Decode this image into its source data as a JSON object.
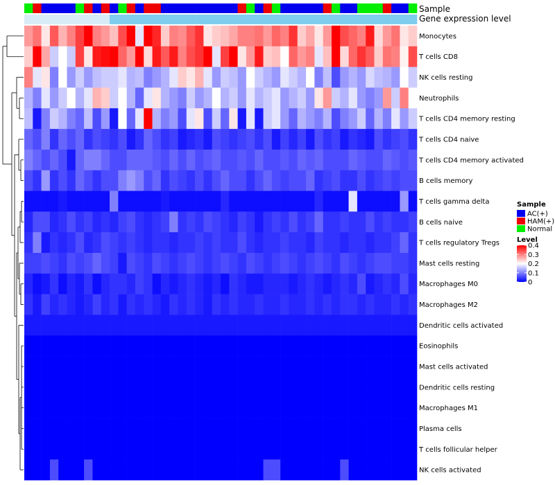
{
  "chart_data": {
    "type": "heatmap",
    "title": "",
    "annotation_tracks": [
      "Sample",
      "Gene expression level"
    ],
    "sample_groups": [
      "AC(+)",
      "HAM(+)",
      "Normal"
    ],
    "legend": {
      "sample": {
        "title": "Sample",
        "entries": [
          {
            "label": "AC(+)",
            "color": "#0000ee"
          },
          {
            "label": "HAM(+)",
            "color": "#ee0000"
          },
          {
            "label": "Normal",
            "color": "#00ee00"
          }
        ]
      },
      "level": {
        "title": "Level",
        "ticks": [
          "0.4",
          "0.3",
          "0.2",
          "0.1",
          "0"
        ],
        "low_color": "#0000ff",
        "mid_color": "#ffffff",
        "high_color": "#ff0000",
        "range": [
          0,
          0.4
        ]
      }
    },
    "sample_track": [
      "Normal",
      "HAM(+)",
      "AC(+)",
      "AC(+)",
      "AC(+)",
      "AC(+)",
      "Normal",
      "HAM(+)",
      "AC(+)",
      "HAM(+)",
      "AC(+)",
      "Normal",
      "HAM(+)",
      "AC(+)",
      "HAM(+)",
      "HAM(+)",
      "AC(+)",
      "AC(+)",
      "AC(+)",
      "AC(+)",
      "AC(+)",
      "AC(+)",
      "AC(+)",
      "AC(+)",
      "AC(+)",
      "HAM(+)",
      "Normal",
      "AC(+)",
      "HAM(+)",
      "Normal",
      "AC(+)",
      "AC(+)",
      "AC(+)",
      "AC(+)",
      "AC(+)",
      "HAM(+)",
      "Normal",
      "AC(+)",
      "AC(+)",
      "Normal",
      "Normal",
      "Normal",
      "HAM(+)",
      "AC(+)",
      "AC(+)",
      "Normal"
    ],
    "gene_expression_track": [
      0.05,
      0.05,
      0.05,
      0.05,
      0.05,
      0.05,
      0.05,
      0.05,
      0.05,
      0.05,
      0.1,
      0.1,
      0.1,
      0.1,
      0.1,
      0.1,
      0.1,
      0.1,
      0.1,
      0.1,
      0.1,
      0.1,
      0.1,
      0.1,
      0.1,
      0.1,
      0.1,
      0.1,
      0.1,
      0.1,
      0.1,
      0.1,
      0.1,
      0.1,
      0.1,
      0.1,
      0.1,
      0.1,
      0.1,
      0.1,
      0.1,
      0.1,
      0.1,
      0.1,
      0.1,
      0.1
    ],
    "rows": [
      {
        "label": "Monocytes",
        "values": [
          0.28,
          0.31,
          0.22,
          0.33,
          0.26,
          0.3,
          0.35,
          0.4,
          0.3,
          0.28,
          0.25,
          0.34,
          0.4,
          0.18,
          0.41,
          0.37,
          0.24,
          0.3,
          0.29,
          0.33,
          0.36,
          0.22,
          0.24,
          0.25,
          0.27,
          0.3,
          0.3,
          0.31,
          0.28,
          0.32,
          0.3,
          0.36,
          0.24,
          0.27,
          0.22,
          0.28,
          0.42,
          0.34,
          0.32,
          0.3,
          0.38,
          0.23,
          0.28,
          0.31,
          0.22,
          0.24
        ]
      },
      {
        "label": "T cells CD8",
        "values": [
          0.24,
          0.4,
          0.27,
          0.16,
          0.2,
          0.16,
          0.35,
          0.22,
          0.38,
          0.39,
          0.4,
          0.32,
          0.28,
          0.4,
          0.23,
          0.38,
          0.33,
          0.38,
          0.3,
          0.34,
          0.36,
          0.4,
          0.18,
          0.35,
          0.4,
          0.22,
          0.28,
          0.38,
          0.24,
          0.25,
          0.2,
          0.32,
          0.28,
          0.3,
          0.18,
          0.25,
          0.4,
          0.23,
          0.32,
          0.36,
          0.33,
          0.24,
          0.31,
          0.3,
          0.21,
          0.34
        ]
      },
      {
        "label": "NK cells resting",
        "values": [
          0.3,
          0.18,
          0.22,
          0.1,
          0.2,
          0.12,
          0.16,
          0.12,
          0.15,
          0.16,
          0.16,
          0.18,
          0.14,
          0.15,
          0.1,
          0.12,
          0.14,
          0.18,
          0.24,
          0.22,
          0.26,
          0.18,
          0.12,
          0.16,
          0.15,
          0.12,
          0.2,
          0.16,
          0.14,
          0.12,
          0.18,
          0.16,
          0.14,
          0.2,
          0.1,
          0.15,
          0.06,
          0.12,
          0.14,
          0.12,
          0.17,
          0.15,
          0.14,
          0.12,
          0.2,
          0.16
        ]
      },
      {
        "label": "Neutrophils",
        "values": [
          0.14,
          0.1,
          0.18,
          0.12,
          0.16,
          0.2,
          0.14,
          0.18,
          0.26,
          0.24,
          0.16,
          0.2,
          0.14,
          0.08,
          0.18,
          0.22,
          0.14,
          0.12,
          0.1,
          0.16,
          0.12,
          0.14,
          0.2,
          0.14,
          0.16,
          0.12,
          0.18,
          0.14,
          0.16,
          0.18,
          0.12,
          0.14,
          0.16,
          0.12,
          0.22,
          0.28,
          0.16,
          0.14,
          0.18,
          0.12,
          0.1,
          0.12,
          0.28,
          0.16,
          0.3,
          0.2
        ]
      },
      {
        "label": "T cells CD4 memory resting",
        "values": [
          0.15,
          0.02,
          0.1,
          0.16,
          0.14,
          0.1,
          0.08,
          0.15,
          0.06,
          0.12,
          0.02,
          0.2,
          0.08,
          0.18,
          0.4,
          0.14,
          0.1,
          0.12,
          0.06,
          0.18,
          0.22,
          0.06,
          0.16,
          0.08,
          0.22,
          0.02,
          0.18,
          0.02,
          0.16,
          0.18,
          0.12,
          0.08,
          0.14,
          0.12,
          0.1,
          0.14,
          0.06,
          0.1,
          0.12,
          0.16,
          0.08,
          0.14,
          0.1,
          0.18,
          0.12,
          0.16
        ]
      },
      {
        "label": "T cells CD4 naive",
        "values": [
          0.08,
          0.06,
          0.1,
          0.04,
          0.08,
          0.06,
          0.08,
          0.04,
          0.06,
          0.05,
          0.04,
          0.06,
          0.02,
          0.04,
          0.08,
          0.06,
          0.04,
          0.05,
          0.02,
          0.03,
          0.04,
          0.02,
          0.06,
          0.05,
          0.04,
          0.05,
          0.06,
          0.04,
          0.06,
          0.02,
          0.05,
          0.03,
          0.05,
          0.02,
          0.06,
          0.04,
          0.05,
          0.02,
          0.04,
          0.03,
          0.02,
          0.06,
          0.04,
          0.05,
          0.06,
          0.04
        ]
      },
      {
        "label": "T cells CD4 memory activated",
        "values": [
          0.1,
          0.08,
          0.06,
          0.08,
          0.06,
          0.02,
          0.08,
          0.1,
          0.1,
          0.08,
          0.06,
          0.06,
          0.08,
          0.08,
          0.08,
          0.07,
          0.06,
          0.08,
          0.06,
          0.08,
          0.06,
          0.07,
          0.08,
          0.06,
          0.06,
          0.07,
          0.06,
          0.08,
          0.06,
          0.06,
          0.07,
          0.06,
          0.08,
          0.07,
          0.08,
          0.06,
          0.06,
          0.06,
          0.08,
          0.07,
          0.06,
          0.06,
          0.08,
          0.07,
          0.06,
          0.07
        ]
      },
      {
        "label": "B cells memory",
        "values": [
          0.06,
          0.04,
          0.12,
          0.04,
          0.06,
          0.04,
          0.08,
          0.06,
          0.04,
          0.06,
          0.06,
          0.1,
          0.12,
          0.1,
          0.06,
          0.08,
          0.04,
          0.06,
          0.05,
          0.04,
          0.06,
          0.04,
          0.06,
          0.08,
          0.06,
          0.06,
          0.04,
          0.06,
          0.08,
          0.06,
          0.05,
          0.06,
          0.06,
          0.08,
          0.04,
          0.05,
          0.06,
          0.04,
          0.04,
          0.06,
          0.04,
          0.05,
          0.06,
          0.05,
          0.06,
          0.06
        ]
      },
      {
        "label": "T cells gamma delta",
        "values": [
          0.01,
          0.01,
          0.01,
          0.01,
          0.02,
          0.01,
          0.01,
          0.01,
          0.01,
          0.01,
          0.1,
          0.01,
          0.01,
          0.01,
          0.01,
          0.01,
          0.02,
          0.01,
          0.01,
          0.01,
          0.01,
          0.01,
          0.01,
          0.03,
          0.01,
          0.01,
          0.01,
          0.01,
          0.01,
          0.01,
          0.01,
          0.01,
          0.01,
          0.01,
          0.03,
          0.01,
          0.01,
          0.01,
          0.18,
          0.01,
          0.01,
          0.01,
          0.01,
          0.01,
          0.12,
          0.01
        ]
      },
      {
        "label": "B cells naive",
        "values": [
          0.03,
          0.06,
          0.06,
          0.03,
          0.04,
          0.06,
          0.04,
          0.05,
          0.03,
          0.04,
          0.03,
          0.05,
          0.06,
          0.04,
          0.03,
          0.04,
          0.05,
          0.1,
          0.04,
          0.05,
          0.04,
          0.06,
          0.05,
          0.04,
          0.03,
          0.05,
          0.04,
          0.02,
          0.04,
          0.05,
          0.04,
          0.06,
          0.04,
          0.05,
          0.08,
          0.04,
          0.04,
          0.05,
          0.04,
          0.04,
          0.06,
          0.04,
          0.05,
          0.04,
          0.04,
          0.05
        ]
      },
      {
        "label": "T cells regulatory  Tregs",
        "values": [
          0.04,
          0.1,
          0.02,
          0.04,
          0.03,
          0.04,
          0.06,
          0.03,
          0.04,
          0.06,
          0.05,
          0.04,
          0.05,
          0.04,
          0.03,
          0.04,
          0.04,
          0.03,
          0.04,
          0.04,
          0.05,
          0.04,
          0.05,
          0.04,
          0.04,
          0.06,
          0.04,
          0.03,
          0.04,
          0.04,
          0.05,
          0.04,
          0.04,
          0.03,
          0.05,
          0.04,
          0.04,
          0.03,
          0.04,
          0.04,
          0.03,
          0.04,
          0.04,
          0.05,
          0.08,
          0.04
        ]
      },
      {
        "label": "Mast cells resting",
        "values": [
          0.05,
          0.05,
          0.06,
          0.05,
          0.04,
          0.06,
          0.05,
          0.06,
          0.08,
          0.06,
          0.05,
          0.02,
          0.06,
          0.05,
          0.04,
          0.06,
          0.05,
          0.04,
          0.05,
          0.06,
          0.05,
          0.04,
          0.05,
          0.06,
          0.05,
          0.04,
          0.06,
          0.05,
          0.04,
          0.05,
          0.06,
          0.05,
          0.04,
          0.05,
          0.06,
          0.05,
          0.04,
          0.06,
          0.05,
          0.04,
          0.05,
          0.06,
          0.06,
          0.05,
          0.05,
          0.04
        ]
      },
      {
        "label": "Macrophages M0",
        "values": [
          0.03,
          0.01,
          0.02,
          0.04,
          0.01,
          0.03,
          0.02,
          0.04,
          0.01,
          0.03,
          0.04,
          0.04,
          0.03,
          0.05,
          0.04,
          0.01,
          0.03,
          0.02,
          0.03,
          0.04,
          0.03,
          0.02,
          0.03,
          0.01,
          0.04,
          0.03,
          0.02,
          0.02,
          0.03,
          0.03,
          0.03,
          0.02,
          0.03,
          0.04,
          0.03,
          0.02,
          0.03,
          0.04,
          0.03,
          0.06,
          0.02,
          0.03,
          0.04,
          0.03,
          0.06,
          0.03
        ]
      },
      {
        "label": "Macrophages M2",
        "values": [
          0.04,
          0.02,
          0.05,
          0.03,
          0.04,
          0.03,
          0.02,
          0.03,
          0.05,
          0.03,
          0.04,
          0.02,
          0.04,
          0.03,
          0.04,
          0.03,
          0.02,
          0.04,
          0.03,
          0.04,
          0.03,
          0.02,
          0.04,
          0.03,
          0.04,
          0.03,
          0.03,
          0.04,
          0.03,
          0.03,
          0.04,
          0.03,
          0.03,
          0.04,
          0.03,
          0.04,
          0.03,
          0.04,
          0.04,
          0.03,
          0.04,
          0.03,
          0.03,
          0.04,
          0.03,
          0.04
        ]
      },
      {
        "label": "Dendritic cells activated",
        "values": [
          0.02,
          0.02,
          0.02,
          0.02,
          0.02,
          0.02,
          0.02,
          0.02,
          0.02,
          0.02,
          0.02,
          0.02,
          0.02,
          0.02,
          0.02,
          0.02,
          0.02,
          0.02,
          0.02,
          0.02,
          0.02,
          0.02,
          0.02,
          0.02,
          0.02,
          0.02,
          0.02,
          0.02,
          0.02,
          0.02,
          0.02,
          0.02,
          0.02,
          0.02,
          0.02,
          0.02,
          0.02,
          0.02,
          0.02,
          0.02,
          0.02,
          0.02,
          0.02,
          0.02,
          0.02,
          0.02
        ]
      },
      {
        "label": "Eosinophils",
        "values": [
          0,
          0,
          0,
          0,
          0,
          0,
          0,
          0,
          0,
          0,
          0,
          0,
          0,
          0,
          0,
          0,
          0,
          0,
          0,
          0,
          0,
          0,
          0,
          0,
          0,
          0,
          0,
          0,
          0,
          0,
          0,
          0,
          0,
          0,
          0,
          0,
          0,
          0,
          0,
          0,
          0,
          0,
          0,
          0,
          0,
          0
        ]
      },
      {
        "label": "Mast cells activated",
        "values": [
          0,
          0,
          0,
          0,
          0,
          0,
          0,
          0,
          0,
          0,
          0,
          0,
          0,
          0,
          0,
          0,
          0,
          0,
          0,
          0,
          0,
          0,
          0,
          0,
          0,
          0,
          0,
          0,
          0,
          0,
          0,
          0,
          0,
          0,
          0,
          0,
          0,
          0,
          0,
          0,
          0,
          0,
          0,
          0,
          0,
          0
        ]
      },
      {
        "label": "Dendritic cells resting",
        "values": [
          0,
          0,
          0,
          0,
          0,
          0,
          0,
          0,
          0,
          0,
          0,
          0,
          0,
          0,
          0,
          0,
          0,
          0,
          0,
          0,
          0,
          0,
          0,
          0,
          0,
          0,
          0,
          0,
          0,
          0,
          0,
          0,
          0,
          0,
          0,
          0,
          0,
          0,
          0,
          0,
          0,
          0,
          0,
          0,
          0,
          0
        ]
      },
      {
        "label": "Macrophages M1",
        "values": [
          0,
          0,
          0,
          0,
          0,
          0,
          0,
          0,
          0,
          0,
          0,
          0,
          0,
          0,
          0,
          0,
          0,
          0,
          0,
          0,
          0,
          0,
          0,
          0,
          0,
          0,
          0,
          0,
          0,
          0,
          0,
          0,
          0,
          0,
          0,
          0,
          0,
          0,
          0,
          0,
          0,
          0,
          0,
          0,
          0,
          0
        ]
      },
      {
        "label": "Plasma cells",
        "values": [
          0,
          0,
          0,
          0,
          0,
          0,
          0,
          0,
          0,
          0,
          0,
          0,
          0,
          0,
          0,
          0,
          0,
          0,
          0,
          0,
          0,
          0,
          0,
          0,
          0,
          0,
          0,
          0,
          0,
          0,
          0,
          0,
          0,
          0,
          0,
          0,
          0,
          0,
          0,
          0,
          0,
          0,
          0,
          0,
          0,
          0
        ]
      },
      {
        "label": "T cells follicular helper",
        "values": [
          0,
          0,
          0,
          0,
          0,
          0,
          0,
          0,
          0,
          0,
          0,
          0,
          0,
          0,
          0,
          0,
          0,
          0,
          0,
          0,
          0,
          0,
          0,
          0,
          0,
          0,
          0,
          0,
          0,
          0,
          0,
          0,
          0,
          0,
          0,
          0,
          0,
          0,
          0,
          0,
          0,
          0,
          0,
          0,
          0,
          0
        ]
      },
      {
        "label": "NK cells activated",
        "values": [
          0,
          0,
          0,
          0.06,
          0,
          0,
          0,
          0.06,
          0,
          0,
          0,
          0,
          0,
          0,
          0,
          0,
          0,
          0,
          0,
          0,
          0,
          0,
          0,
          0,
          0,
          0,
          0,
          0,
          0.06,
          0.06,
          0,
          0,
          0,
          0,
          0,
          0,
          0,
          0.06,
          0,
          0,
          0,
          0,
          0,
          0,
          0,
          0
        ]
      }
    ]
  }
}
